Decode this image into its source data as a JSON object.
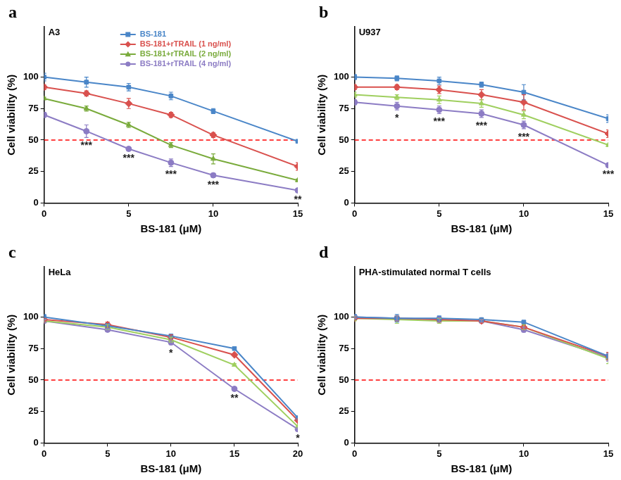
{
  "chart_data": [
    {
      "panel": "a",
      "type": "line",
      "title": "A3",
      "x_label": "BS-181 (μM)",
      "y_label": "Cell viability (%)",
      "xlim": [
        0,
        15
      ],
      "xticks": [
        0,
        5,
        10,
        15
      ],
      "ylim": [
        0,
        140
      ],
      "yticks": [
        0,
        25,
        50,
        75,
        100
      ],
      "grid": false,
      "legend": "upper center",
      "reference_line": {
        "value": 50,
        "color": "#ff0000",
        "line_style": "dashed"
      },
      "annotations": [
        {
          "x": 2.5,
          "text": "***"
        },
        {
          "x": 5,
          "text": "***"
        },
        {
          "x": 7.5,
          "text": "***"
        },
        {
          "x": 10,
          "text": "***"
        },
        {
          "x": 15,
          "text": "**"
        }
      ],
      "x": [
        0,
        2.5,
        5,
        7.5,
        10,
        15
      ],
      "series": [
        {
          "name": "BS-181",
          "color": "#4a86c8",
          "marker": "square",
          "values": [
            100,
            96,
            92,
            85,
            73,
            49
          ],
          "errors": [
            3,
            4,
            3,
            3,
            2,
            1
          ]
        },
        {
          "name": "BS-181+rTRAIL (1 ng/ml)",
          "color": "#d9514e",
          "marker": "diamond",
          "values": [
            92,
            87,
            79,
            70,
            54,
            29
          ],
          "errors": [
            2,
            2,
            4,
            2,
            2,
            3
          ]
        },
        {
          "name": "BS-181+rTRAIL (2 ng/ml)",
          "color": "#7aab3c",
          "marker": "triangle",
          "values": [
            83,
            75,
            62,
            46,
            35,
            18
          ],
          "errors": [
            1,
            2,
            2,
            2,
            4,
            1
          ]
        },
        {
          "name": "BS-181+rTRAIL (4 ng/ml)",
          "color": "#8c7cc4",
          "marker": "circle",
          "values": [
            70,
            57,
            43,
            32,
            22,
            10
          ],
          "errors": [
            2,
            5,
            1,
            3,
            1,
            1
          ]
        }
      ]
    },
    {
      "panel": "b",
      "type": "line",
      "title": "U937",
      "x_label": "BS-181 (μM)",
      "y_label": "Cell viability (%)",
      "xlim": [
        0,
        15
      ],
      "xticks": [
        0,
        5,
        10,
        15
      ],
      "ylim": [
        0,
        140
      ],
      "yticks": [
        0,
        25,
        50,
        75,
        100
      ],
      "grid": false,
      "reference_line": {
        "value": 50,
        "color": "#ff0000",
        "line_style": "dashed"
      },
      "annotations": [
        {
          "x": 2.5,
          "text": "*"
        },
        {
          "x": 5,
          "text": "***"
        },
        {
          "x": 7.5,
          "text": "***"
        },
        {
          "x": 10,
          "text": "***"
        },
        {
          "x": 15,
          "text": "***"
        }
      ],
      "x": [
        0,
        2.5,
        5,
        7.5,
        10,
        15
      ],
      "series": [
        {
          "color": "#4a86c8",
          "marker": "square",
          "values": [
            100,
            99,
            97,
            94,
            88,
            67
          ],
          "errors": [
            2,
            2,
            3,
            2,
            6,
            3
          ]
        },
        {
          "color": "#d9514e",
          "marker": "diamond",
          "values": [
            92,
            92,
            90,
            86,
            80,
            55
          ],
          "errors": [
            2,
            2,
            3,
            4,
            6,
            3
          ]
        },
        {
          "color": "#9fcf5f",
          "marker": "triangle",
          "values": [
            86,
            84,
            82,
            79,
            70,
            46
          ],
          "errors": [
            2,
            2,
            3,
            3,
            3,
            1
          ]
        },
        {
          "color": "#8c7cc4",
          "marker": "circle",
          "values": [
            80,
            77,
            74,
            71,
            62,
            30
          ],
          "errors": [
            2,
            3,
            3,
            3,
            3,
            1
          ]
        }
      ]
    },
    {
      "panel": "c",
      "type": "line",
      "title": "HeLa",
      "x_label": "BS-181 (μM)",
      "y_label": "Cell viability (%)",
      "xlim": [
        0,
        20
      ],
      "xticks": [
        0,
        5,
        10,
        15,
        20
      ],
      "ylim": [
        0,
        140
      ],
      "yticks": [
        0,
        25,
        50,
        75,
        100
      ],
      "grid": false,
      "reference_line": {
        "value": 50,
        "color": "#ff0000",
        "line_style": "dashed"
      },
      "annotations": [
        {
          "x": 10,
          "text": "*"
        },
        {
          "x": 15,
          "text": "**"
        },
        {
          "x": 20,
          "text": "*"
        }
      ],
      "x": [
        0,
        5,
        10,
        15,
        20
      ],
      "series": [
        {
          "color": "#4a86c8",
          "marker": "square",
          "values": [
            100,
            93,
            85,
            75,
            20
          ],
          "errors": [
            2,
            2,
            1,
            1,
            1
          ]
        },
        {
          "color": "#d9514e",
          "marker": "diamond",
          "values": [
            98,
            94,
            84,
            70,
            18
          ],
          "errors": [
            1,
            2,
            2,
            1,
            1
          ]
        },
        {
          "color": "#9fcf5f",
          "marker": "triangle",
          "values": [
            97,
            92,
            82,
            62,
            13
          ],
          "errors": [
            1,
            2,
            2,
            1,
            1
          ]
        },
        {
          "color": "#8c7cc4",
          "marker": "circle",
          "values": [
            97,
            90,
            80,
            43,
            11
          ],
          "errors": [
            1,
            1,
            2,
            1,
            1
          ]
        }
      ]
    },
    {
      "panel": "d",
      "type": "line",
      "title": "PHA-stimulated normal T cells",
      "x_label": "BS-181 (μM)",
      "y_label": "Cell viability (%)",
      "xlim": [
        0,
        15
      ],
      "xticks": [
        0,
        5,
        10,
        15
      ],
      "ylim": [
        0,
        140
      ],
      "yticks": [
        0,
        25,
        50,
        75,
        100
      ],
      "grid": false,
      "reference_line": {
        "value": 50,
        "color": "#ff0000",
        "line_style": "dashed"
      },
      "x": [
        0,
        2.5,
        5,
        7.5,
        10,
        15
      ],
      "series": [
        {
          "color": "#4a86c8",
          "marker": "square",
          "values": [
            100,
            99,
            99,
            98,
            96,
            69
          ],
          "errors": [
            2,
            3,
            2,
            1,
            1,
            3
          ]
        },
        {
          "color": "#d9514e",
          "marker": "diamond",
          "values": [
            99,
            99,
            98,
            97,
            92,
            69
          ],
          "errors": [
            1,
            2,
            2,
            1,
            2,
            3
          ]
        },
        {
          "color": "#9fcf5f",
          "marker": "triangle",
          "values": [
            99,
            98,
            97,
            97,
            92,
            67
          ],
          "errors": [
            2,
            3,
            2,
            1,
            2,
            4
          ]
        },
        {
          "color": "#8c7cc4",
          "marker": "circle",
          "values": [
            100,
            99,
            98,
            97,
            90,
            68
          ],
          "errors": [
            1,
            2,
            2,
            1,
            2,
            3
          ]
        }
      ]
    }
  ]
}
